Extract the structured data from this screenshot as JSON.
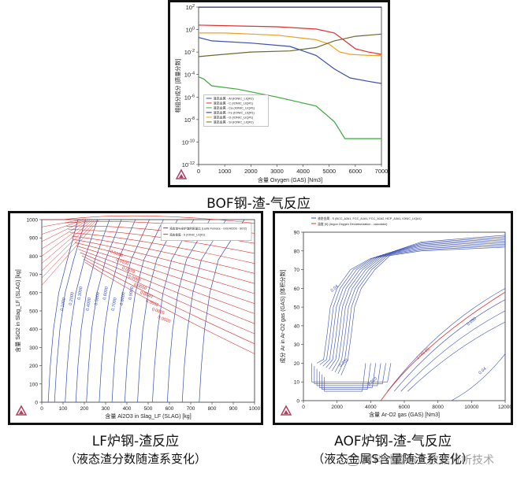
{
  "figure_captions": {
    "top": "BOF钢-渣-气反应",
    "left_line1": "LF炉钢-渣反应",
    "left_line2": "（液态渣分数随渣系变化）",
    "right_line1": "AOF炉钢-渣-气反应",
    "right_line2": "（液态金属S含量随渣系变化）"
  },
  "watermark": "材料计算与大数据分析技术",
  "colors": {
    "blue": "#3a4fb0",
    "red": "#e03030",
    "orange": "#f0a020",
    "olive": "#6a6a30",
    "green": "#3aaa3a",
    "navy": "#2a2a6a",
    "frame": "#111111"
  },
  "chart_data": [
    {
      "type": "line",
      "title": "",
      "xlabel": "含量 Oxygen (GAS) [Nm3]",
      "ylabel": "相组分成分 [质量分数]",
      "xlim": [
        0,
        7000
      ],
      "ylim_log10": [
        -12,
        2
      ],
      "x_ticks": [
        "0",
        "1000",
        "2000",
        "3000",
        "4000",
        "5000",
        "6000",
        "7000"
      ],
      "y_ticks": [
        "10^2",
        "10^0",
        "10^-2",
        "10^-4",
        "10^-6",
        "10^-8",
        "10^-10",
        "10^-12"
      ],
      "legend": [
        "液态金属 - Al (IONIC_LIQ#1)",
        "液态金属 - C (IONIC_LIQ#1)",
        "液态金属 - Ca (IONIC_LIQ#1)",
        "液态金属 - Fe (IONIC_LIQ#1)",
        "液态金属 - O (IONIC_LIQ#1)",
        "液态金属 - Si (IONIC_LIQ#1)"
      ],
      "series": [
        {
          "name": "液态金属 - Al (IONIC_LIQ#1)",
          "color": "#3a4fb0",
          "points": [
            [
              0,
              -0.7
            ],
            [
              500,
              -1.0
            ],
            [
              2000,
              -1.2
            ],
            [
              3500,
              -1.5
            ],
            [
              4500,
              -2.3
            ],
            [
              5200,
              -3.5
            ],
            [
              5800,
              -4.3
            ],
            [
              6500,
              -4.6
            ],
            [
              7000,
              -4.8
            ]
          ]
        },
        {
          "name": "液态金属 - C (IONIC_LIQ#1)",
          "color": "#e03030",
          "points": [
            [
              0,
              0.4
            ],
            [
              1000,
              0.35
            ],
            [
              3000,
              0.25
            ],
            [
              4500,
              0.05
            ],
            [
              5200,
              -0.3
            ],
            [
              5600,
              -1.0
            ],
            [
              6000,
              -1.7
            ],
            [
              6500,
              -2.0
            ],
            [
              7000,
              -2.2
            ]
          ]
        },
        {
          "name": "液态金属 - Ca (IONIC_LIQ#1)",
          "color": "#3aaa3a",
          "points": [
            [
              0,
              -4.2
            ],
            [
              200,
              -4.4
            ],
            [
              500,
              -5.0
            ],
            [
              1500,
              -5.3
            ],
            [
              3000,
              -6.0
            ],
            [
              4500,
              -6.8
            ],
            [
              5200,
              -8.2
            ],
            [
              5600,
              -9.7
            ],
            [
              7000,
              -9.7
            ]
          ]
        },
        {
          "name": "液态金属 - Fe (IONIC_LIQ#1)",
          "color": "#2a2a6a",
          "points": [
            [
              0,
              1.99
            ],
            [
              7000,
              1.99
            ]
          ]
        },
        {
          "name": "液态金属 - O (IONIC_LIQ#1)",
          "color": "#f0a020",
          "points": [
            [
              0,
              -0.3
            ],
            [
              1000,
              -0.3
            ],
            [
              3000,
              -0.5
            ],
            [
              4500,
              -0.9
            ],
            [
              5000,
              -1.3
            ],
            [
              5400,
              -2.0
            ],
            [
              5800,
              -2.2
            ],
            [
              6500,
              -2.3
            ],
            [
              7000,
              -2.3
            ]
          ]
        },
        {
          "name": "液态金属 - Si (IONIC_LIQ#1)",
          "color": "#6a6a30",
          "points": [
            [
              0,
              -2.4
            ],
            [
              500,
              -2.3
            ],
            [
              2000,
              -2.0
            ],
            [
              3500,
              -1.9
            ],
            [
              4500,
              -1.6
            ],
            [
              5200,
              -1.0
            ],
            [
              6000,
              -0.6
            ],
            [
              7000,
              -0.4
            ]
          ]
        }
      ]
    },
    {
      "type": "line",
      "title": "",
      "xlabel": "含量 Al2O3 in Slag_LF (SLAG) [kg]",
      "ylabel": "含量 SiO2 in Slag_LF (SLAG) [kg]",
      "xlim": [
        0,
        1000
      ],
      "ylim": [
        0,
        1000
      ],
      "x_ticks": [
        "0",
        "100",
        "200",
        "300",
        "400",
        "500",
        "600",
        "700",
        "800",
        "900",
        "1000"
      ],
      "y_ticks": [
        "0",
        "100",
        "200",
        "300",
        "400",
        "500",
        "600",
        "700",
        "800",
        "900",
        "1000"
      ],
      "legend": [
        "液态渣与全炉渣的质量比 (Ladle Furnace - Grid Al2O3 - SiO2)",
        "液态金属 - S (IONIC_LIQ#1)"
      ],
      "contour_labels_blue": [
        "0.1000",
        "0.2000",
        "0.3000",
        "0.4000",
        "0.5000",
        "0.6000",
        "0.7000",
        "0.8000",
        "0.9000"
      ],
      "contour_labels_red": [
        "0.0158",
        "0.0100",
        "0.0079",
        "0.0063",
        "0.0050",
        "0.0040",
        "0.0032",
        "0.0025",
        "0.0020"
      ]
    },
    {
      "type": "line",
      "title": "",
      "xlabel": "含量 Ar-O2 gas (GAS) [Nm3]",
      "ylabel": "成分 Ar in Ar-O2 gas (GAS) [体积分数]",
      "xlim": [
        0,
        12000
      ],
      "ylim": [
        0,
        90
      ],
      "x_ticks": [
        "0",
        "2000",
        "4000",
        "6000",
        "8000",
        "10000",
        "12000"
      ],
      "y_ticks": [
        "0",
        "10",
        "20",
        "30",
        "40",
        "50",
        "60",
        "70",
        "80",
        "90"
      ],
      "legend": [
        "液态金属 - S (BCC_A2#1, FCC_A1#1, FCC_A1#2, HCP_A3#1, IONIC_LIQ#1)",
        "温度 [K] (Argon Oxygen Decarburization - calculator)"
      ],
      "contour_labels": [
        "0.04",
        "0.030",
        "0.031",
        "0.010",
        "1740.00",
        "0.04"
      ]
    }
  ]
}
